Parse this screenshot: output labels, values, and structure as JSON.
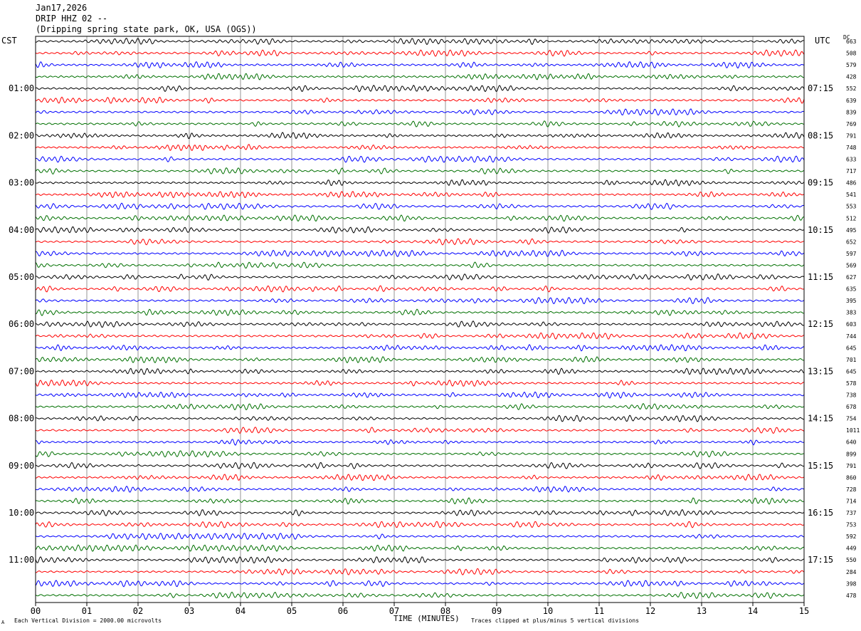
{
  "header": {
    "date": "Jan17,2026",
    "station": "DRIP HHZ 02 --",
    "location": "(Dripping spring state park, OK, USA (OGS))"
  },
  "left_timezone": "CST",
  "right_timezone": "UTC",
  "dc_label": "DC",
  "footer": {
    "scale_note": "Each Vertical Division = 2000.00 microvolts",
    "axis_title": "TIME (MINUTES)",
    "clip_note": "Traces clipped at plus/minus 5 vertical divisions",
    "corner_mark": "A"
  },
  "colors": {
    "trace_cycle": [
      "#000000",
      "#ff0000",
      "#0000ff",
      "#007000"
    ],
    "grid": "#7a7a7a"
  },
  "chart_data": {
    "type": "line",
    "title": "",
    "xlabel": "TIME (MINUTES)",
    "xlim": [
      0,
      15
    ],
    "x_ticks": [
      "00",
      "01",
      "02",
      "03",
      "04",
      "05",
      "06",
      "07",
      "08",
      "09",
      "10",
      "11",
      "12",
      "13",
      "14",
      "15"
    ],
    "traces_per_hour": 4,
    "trace_count": 48,
    "left_hour_labels": [
      "01:00",
      "02:00",
      "03:00",
      "04:00",
      "05:00",
      "06:00",
      "07:00",
      "08:00",
      "09:00",
      "10:00",
      "11:00"
    ],
    "right_hour_labels": [
      "07:15",
      "08:15",
      "09:15",
      "10:15",
      "11:15",
      "12:15",
      "13:15",
      "14:15",
      "15:15",
      "16:15",
      "17:15"
    ],
    "dc_offsets": [
      "663",
      "508",
      "579",
      "428",
      "552",
      "639",
      "839",
      "769",
      "791",
      "748",
      "633",
      "717",
      "486",
      "541",
      "553",
      "512",
      "495",
      "652",
      "597",
      "569",
      "627",
      "635",
      "395",
      "383",
      "603",
      "744",
      "645",
      "701",
      "645",
      "578",
      "738",
      "678",
      "754",
      "1011",
      "640",
      "899",
      "791",
      "860",
      "728",
      "714",
      "737",
      "753",
      "592",
      "449",
      "550",
      "284",
      "398",
      "478"
    ]
  }
}
